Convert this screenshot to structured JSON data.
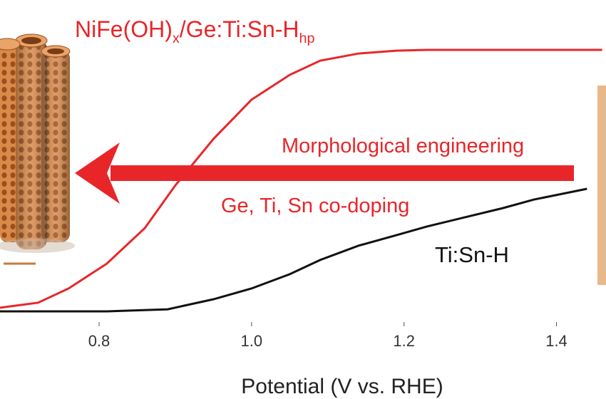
{
  "chart_data": {
    "type": "line",
    "x_label": "Potential (V vs. RHE)",
    "xlim": [
      0.67,
      1.465
    ],
    "ylim": [
      0,
      1
    ],
    "xticks": [
      0.8,
      {
        "value": 1,
        "label": "1.0"
      },
      1.2,
      1.4
    ],
    "annotations": [
      "Morphological engineering",
      "Ge, Ti, Sn co-doping"
    ],
    "series": [
      {
        "name_parts": [
          {
            "text": "NiFe(OH)"
          },
          {
            "text": "x",
            "sub": true
          },
          {
            "text": "/Ge:Ti:Sn-H"
          },
          {
            "text": "hp",
            "sub": true
          }
        ],
        "color": "#e8262a",
        "x": [
          0.67,
          0.72,
          0.76,
          0.81,
          0.86,
          0.9,
          0.95,
          1.0,
          1.05,
          1.09,
          1.14,
          1.19,
          1.23,
          1.33,
          1.46
        ],
        "values": [
          0.022,
          0.041,
          0.095,
          0.189,
          0.324,
          0.486,
          0.662,
          0.811,
          0.905,
          0.959,
          0.986,
          0.997,
          1.0,
          1.0,
          1.0
        ]
      },
      {
        "name_parts": [
          {
            "text": "Ti:Sn-H"
          }
        ],
        "color": "#111111",
        "x": [
          0.67,
          0.81,
          0.89,
          0.95,
          1.0,
          1.05,
          1.09,
          1.14,
          1.19,
          1.23,
          1.28,
          1.33,
          1.37,
          1.44
        ],
        "values": [
          0.008,
          0.008,
          0.016,
          0.054,
          0.095,
          0.149,
          0.203,
          0.257,
          0.297,
          0.33,
          0.365,
          0.4,
          0.432,
          0.473
        ]
      }
    ]
  }
}
